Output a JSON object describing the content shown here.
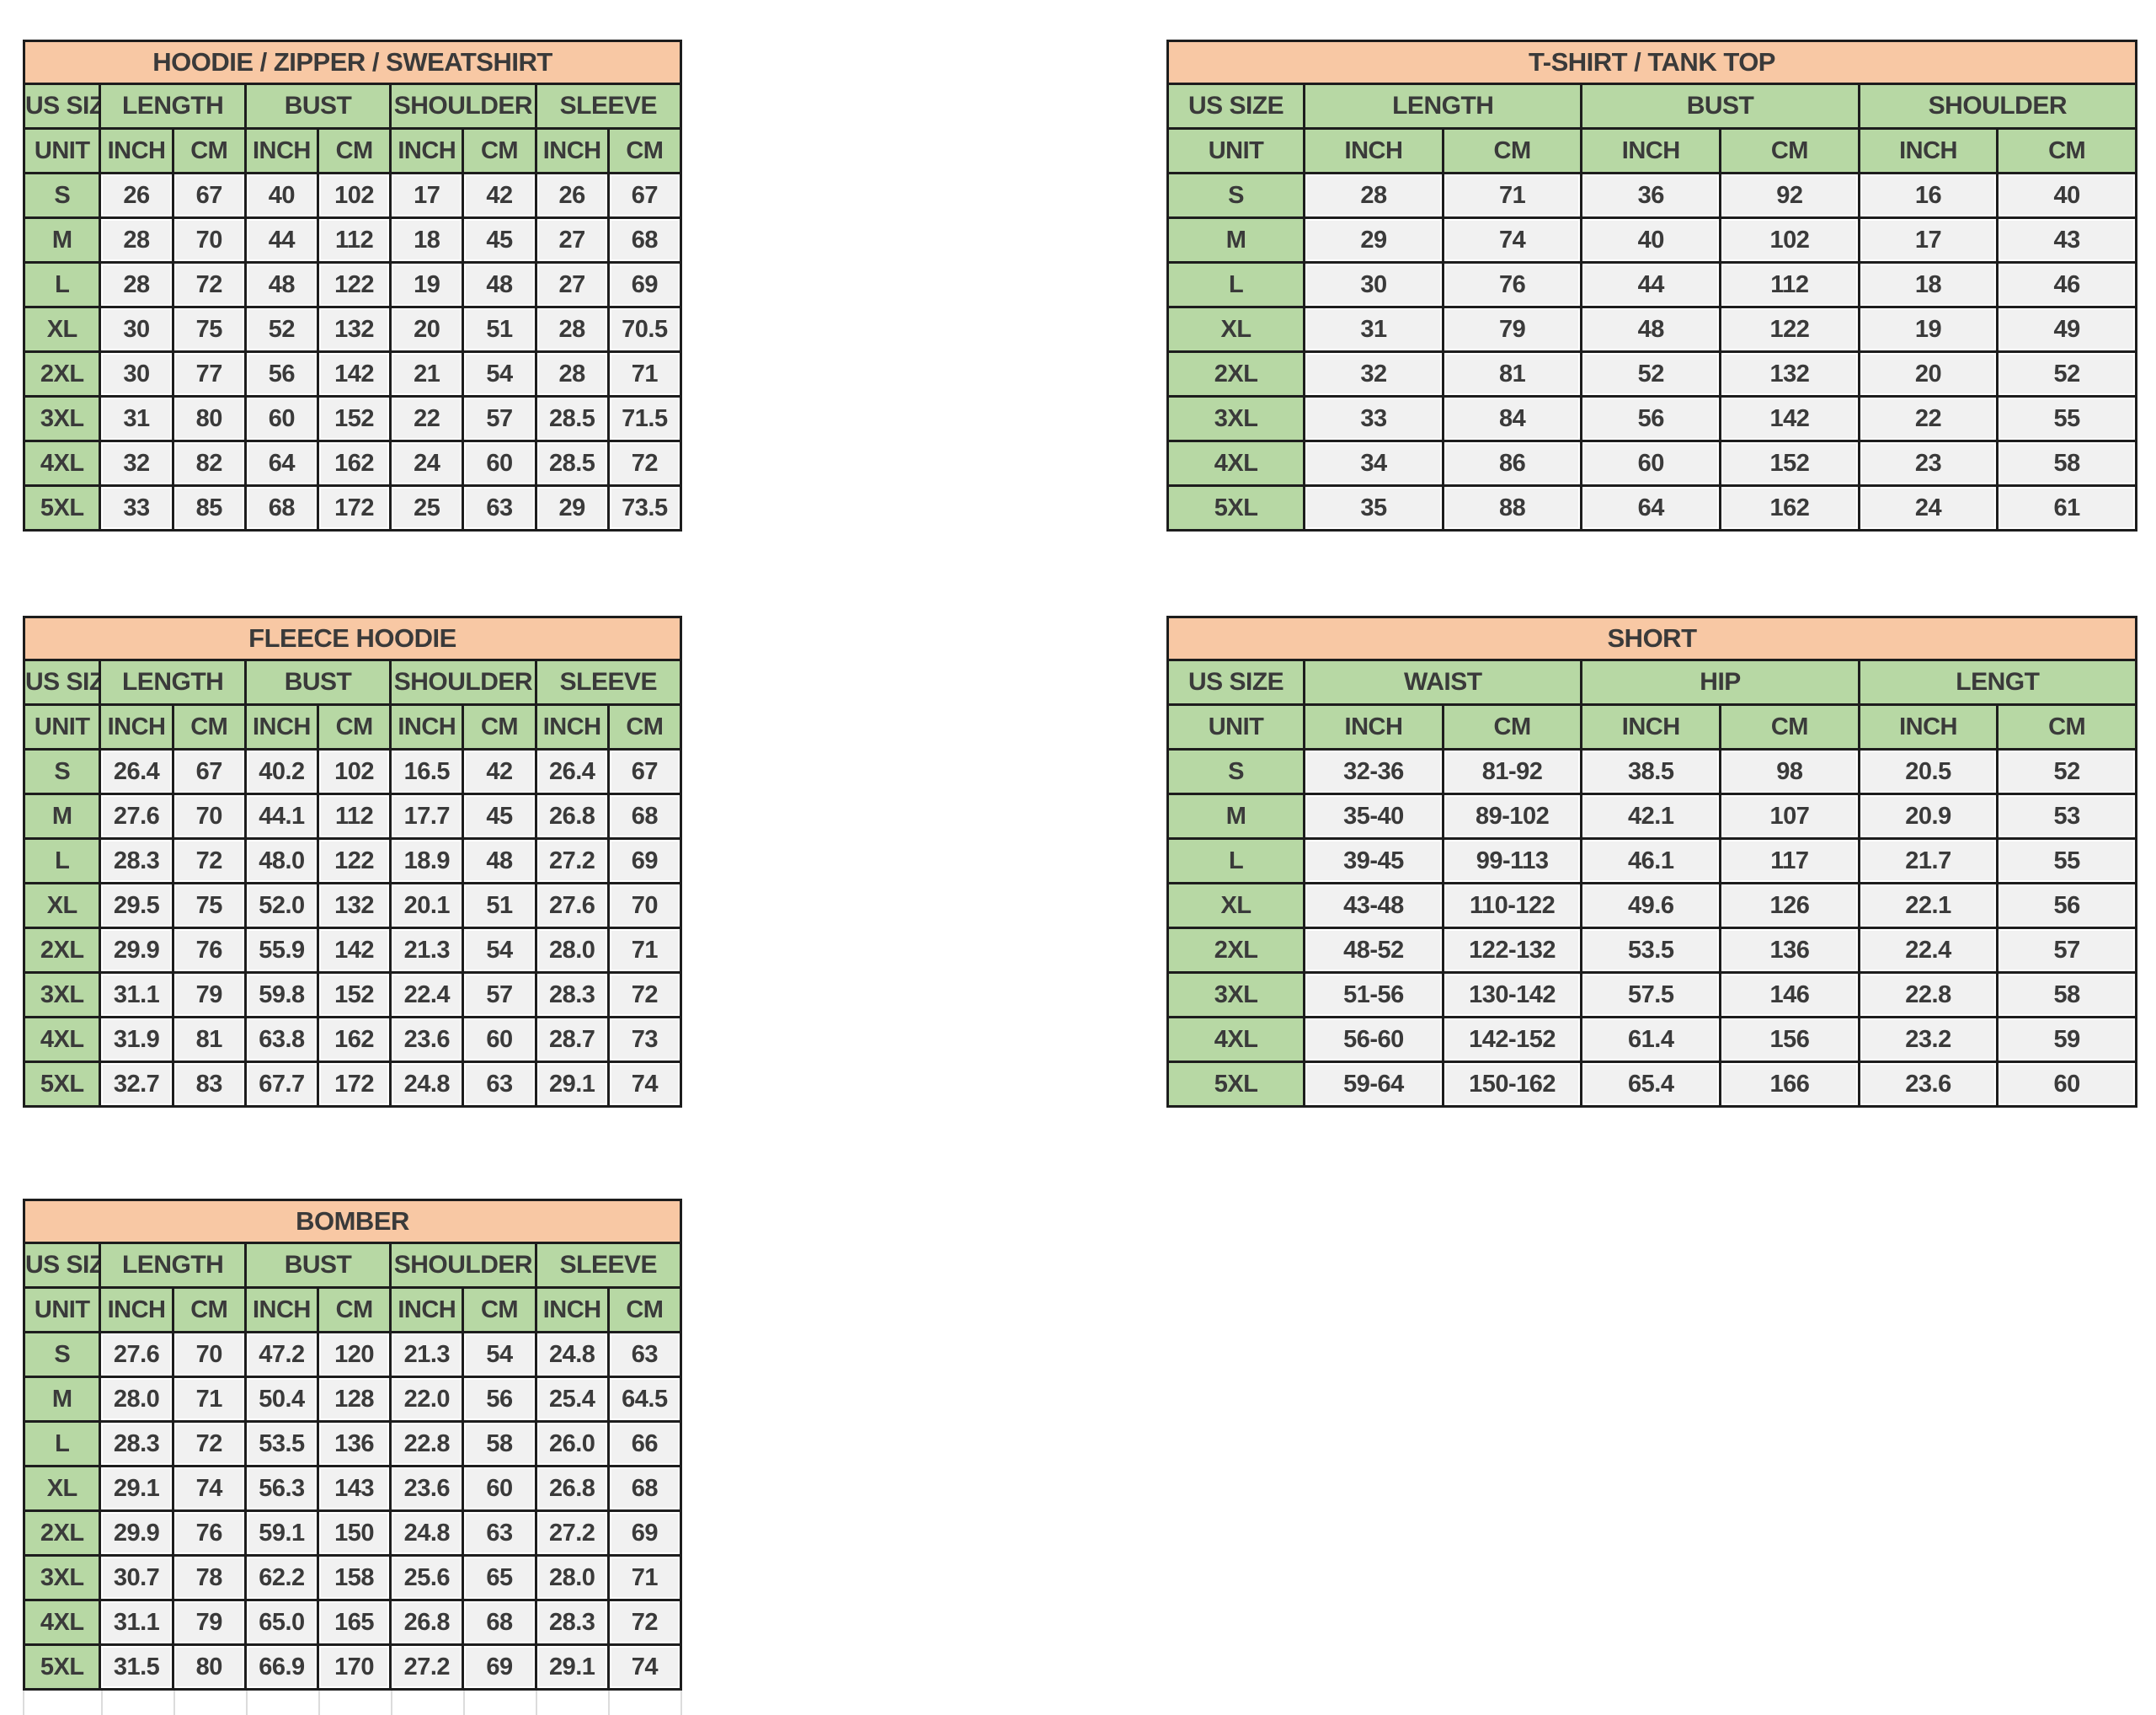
{
  "colors": {
    "title_bg": "#f8c8a4",
    "header_bg": "#b7d8a4",
    "value_bg": "#f1f1f1",
    "border": "#1d1d1d",
    "text": "#3a3a3a",
    "page_bg": "#ffffff"
  },
  "labels": {
    "us_size": "US SIZE",
    "unit": "UNIT",
    "inch": "INCH",
    "cm": "CM"
  },
  "tables": [
    {
      "title": "HOODIE / ZIPPER / SWEATSHIRT",
      "columns": [
        "LENGTH",
        "BUST",
        "SHOULDER",
        "SLEEVE"
      ],
      "sizes": [
        "S",
        "M",
        "L",
        "XL",
        "2XL",
        "3XL",
        "4XL",
        "5XL"
      ],
      "rows": [
        [
          "26",
          "67",
          "40",
          "102",
          "17",
          "42",
          "26",
          "67"
        ],
        [
          "28",
          "70",
          "44",
          "112",
          "18",
          "45",
          "27",
          "68"
        ],
        [
          "28",
          "72",
          "48",
          "122",
          "19",
          "48",
          "27",
          "69"
        ],
        [
          "30",
          "75",
          "52",
          "132",
          "20",
          "51",
          "28",
          "70.5"
        ],
        [
          "30",
          "77",
          "56",
          "142",
          "21",
          "54",
          "28",
          "71"
        ],
        [
          "31",
          "80",
          "60",
          "152",
          "22",
          "57",
          "28.5",
          "71.5"
        ],
        [
          "32",
          "82",
          "64",
          "162",
          "24",
          "60",
          "28.5",
          "72"
        ],
        [
          "33",
          "85",
          "68",
          "172",
          "25",
          "63",
          "29",
          "73.5"
        ]
      ]
    },
    {
      "title": "T-SHIRT / TANK TOP",
      "columns": [
        "LENGTH",
        "BUST",
        "SHOULDER"
      ],
      "sizes": [
        "S",
        "M",
        "L",
        "XL",
        "2XL",
        "3XL",
        "4XL",
        "5XL"
      ],
      "rows": [
        [
          "28",
          "71",
          "36",
          "92",
          "16",
          "40"
        ],
        [
          "29",
          "74",
          "40",
          "102",
          "17",
          "43"
        ],
        [
          "30",
          "76",
          "44",
          "112",
          "18",
          "46"
        ],
        [
          "31",
          "79",
          "48",
          "122",
          "19",
          "49"
        ],
        [
          "32",
          "81",
          "52",
          "132",
          "20",
          "52"
        ],
        [
          "33",
          "84",
          "56",
          "142",
          "22",
          "55"
        ],
        [
          "34",
          "86",
          "60",
          "152",
          "23",
          "58"
        ],
        [
          "35",
          "88",
          "64",
          "162",
          "24",
          "61"
        ]
      ]
    },
    {
      "title": "FLEECE HOODIE",
      "columns": [
        "LENGTH",
        "BUST",
        "SHOULDER",
        "SLEEVE"
      ],
      "sizes": [
        "S",
        "M",
        "L",
        "XL",
        "2XL",
        "3XL",
        "4XL",
        "5XL"
      ],
      "rows": [
        [
          "26.4",
          "67",
          "40.2",
          "102",
          "16.5",
          "42",
          "26.4",
          "67"
        ],
        [
          "27.6",
          "70",
          "44.1",
          "112",
          "17.7",
          "45",
          "26.8",
          "68"
        ],
        [
          "28.3",
          "72",
          "48.0",
          "122",
          "18.9",
          "48",
          "27.2",
          "69"
        ],
        [
          "29.5",
          "75",
          "52.0",
          "132",
          "20.1",
          "51",
          "27.6",
          "70"
        ],
        [
          "29.9",
          "76",
          "55.9",
          "142",
          "21.3",
          "54",
          "28.0",
          "71"
        ],
        [
          "31.1",
          "79",
          "59.8",
          "152",
          "22.4",
          "57",
          "28.3",
          "72"
        ],
        [
          "31.9",
          "81",
          "63.8",
          "162",
          "23.6",
          "60",
          "28.7",
          "73"
        ],
        [
          "32.7",
          "83",
          "67.7",
          "172",
          "24.8",
          "63",
          "29.1",
          "74"
        ]
      ]
    },
    {
      "title": "SHORT",
      "columns": [
        "WAIST",
        "HIP",
        "LENGT"
      ],
      "sizes": [
        "S",
        "M",
        "L",
        "XL",
        "2XL",
        "3XL",
        "4XL",
        "5XL"
      ],
      "rows": [
        [
          "32-36",
          "81-92",
          "38.5",
          "98",
          "20.5",
          "52"
        ],
        [
          "35-40",
          "89-102",
          "42.1",
          "107",
          "20.9",
          "53"
        ],
        [
          "39-45",
          "99-113",
          "46.1",
          "117",
          "21.7",
          "55"
        ],
        [
          "43-48",
          "110-122",
          "49.6",
          "126",
          "22.1",
          "56"
        ],
        [
          "48-52",
          "122-132",
          "53.5",
          "136",
          "22.4",
          "57"
        ],
        [
          "51-56",
          "130-142",
          "57.5",
          "146",
          "22.8",
          "58"
        ],
        [
          "56-60",
          "142-152",
          "61.4",
          "156",
          "23.2",
          "59"
        ],
        [
          "59-64",
          "150-162",
          "65.4",
          "166",
          "23.6",
          "60"
        ]
      ]
    },
    {
      "title": "BOMBER",
      "columns": [
        "LENGTH",
        "BUST",
        "SHOULDER",
        "SLEEVE"
      ],
      "sizes": [
        "S",
        "M",
        "L",
        "XL",
        "2XL",
        "3XL",
        "4XL",
        "5XL"
      ],
      "rows": [
        [
          "27.6",
          "70",
          "47.2",
          "120",
          "21.3",
          "54",
          "24.8",
          "63"
        ],
        [
          "28.0",
          "71",
          "50.4",
          "128",
          "22.0",
          "56",
          "25.4",
          "64.5"
        ],
        [
          "28.3",
          "72",
          "53.5",
          "136",
          "22.8",
          "58",
          "26.0",
          "66"
        ],
        [
          "29.1",
          "74",
          "56.3",
          "143",
          "23.6",
          "60",
          "26.8",
          "68"
        ],
        [
          "29.9",
          "76",
          "59.1",
          "150",
          "24.8",
          "63",
          "27.2",
          "69"
        ],
        [
          "30.7",
          "78",
          "62.2",
          "158",
          "25.6",
          "65",
          "28.0",
          "71"
        ],
        [
          "31.1",
          "79",
          "65.0",
          "165",
          "26.8",
          "68",
          "28.3",
          "72"
        ],
        [
          "31.5",
          "80",
          "66.9",
          "170",
          "27.2",
          "69",
          "29.1",
          "74"
        ]
      ]
    }
  ]
}
